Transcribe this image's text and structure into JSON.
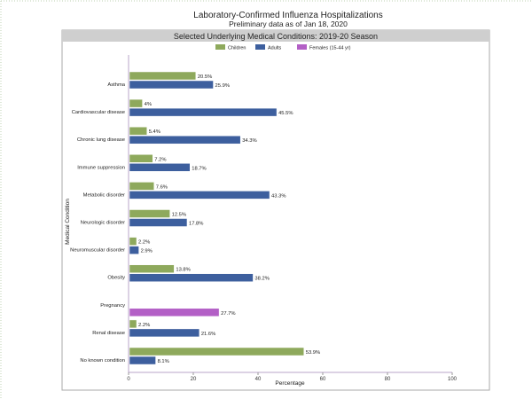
{
  "chart_data": {
    "type": "bar",
    "orientation": "horizontal",
    "title": "Laboratory-Confirmed Influenza Hospitalizations",
    "subtitle": "Preliminary data as of Jan 18, 2020",
    "panel_title": "Selected Underlying Medical Conditions: 2019-20 Season",
    "xlabel": "Percentage",
    "ylabel": "Medical Condition",
    "xlim": [
      0,
      100
    ],
    "xticks": [
      0,
      20,
      40,
      60,
      80,
      100
    ],
    "legend_position": "top-center",
    "categories": [
      "Asthma",
      "Cardiovascular disease",
      "Chronic lung disease",
      "Immune suppression",
      "Metabolic disorder",
      "Neurologic disorder",
      "Neuromuscular disorder",
      "Obesity",
      "Pregnancy",
      "Renal disease",
      "No known condition"
    ],
    "series": [
      {
        "name": "Children",
        "color": "#8ea95c",
        "values": [
          20.5,
          4,
          5.4,
          7.2,
          7.6,
          12.5,
          2.2,
          13.8,
          null,
          2.2,
          53.9
        ],
        "labels": [
          "20.5%",
          "4%",
          "5.4%",
          "7.2%",
          "7.6%",
          "12.5%",
          "2.2%",
          "13.8%",
          null,
          "2.2%",
          "53.9%"
        ]
      },
      {
        "name": "Adults",
        "color": "#3d5f9e",
        "values": [
          25.9,
          45.5,
          34.3,
          18.7,
          43.3,
          17.8,
          2.9,
          38.2,
          null,
          21.6,
          8.1
        ],
        "labels": [
          "25.9%",
          "45.5%",
          "34.3%",
          "18.7%",
          "43.3%",
          "17.8%",
          "2.9%",
          "38.2%",
          null,
          "21.6%",
          "8.1%"
        ]
      },
      {
        "name": "Females (15-44 yr)",
        "color": "#b35fc6",
        "values": [
          null,
          null,
          null,
          null,
          null,
          null,
          null,
          null,
          27.7,
          null,
          null
        ],
        "labels": [
          null,
          null,
          null,
          null,
          null,
          null,
          null,
          null,
          "27.7%",
          null,
          null
        ]
      }
    ]
  }
}
